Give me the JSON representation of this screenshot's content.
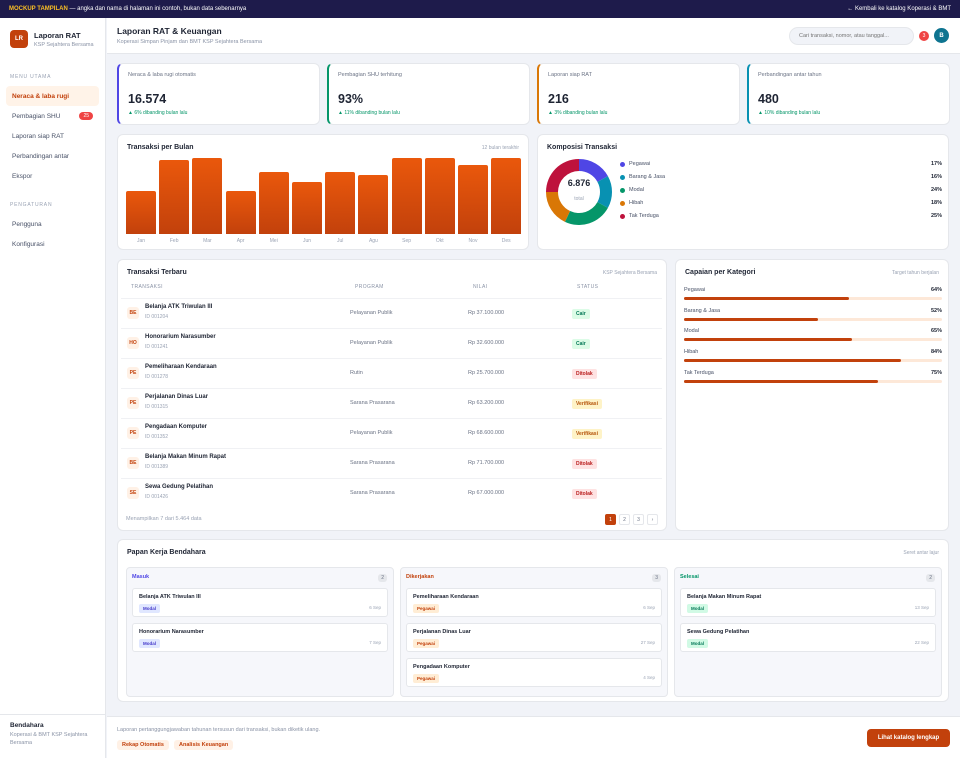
{
  "topbar": {
    "badge": "MOCKUP TAMPILAN",
    "message": " — angka dan nama di halaman ini contoh, bukan data sebenarnya",
    "back_link": "← Kembali ke katalog Koperasi & BMT"
  },
  "sidebar": {
    "logo": "LR",
    "app_title": "Laporan RAT",
    "app_subtitle": "KSP Sejahtera Bersama",
    "section_main": "MENU UTAMA",
    "items": [
      {
        "label": "Neraca & laba rugi",
        "badge": ""
      },
      {
        "label": "Pembagian SHU",
        "badge": "25"
      },
      {
        "label": "Laporan siap RAT",
        "badge": ""
      },
      {
        "label": "Perbandingan antar",
        "badge": ""
      },
      {
        "label": "Ekspor",
        "badge": ""
      }
    ],
    "section_settings": "PENGATURAN",
    "settings_items": [
      "Pengguna",
      "Konfigurasi"
    ],
    "footer_name": "Bendahara",
    "footer_org": "Koperasi & BMT KSP Sejahtera Bersama"
  },
  "header": {
    "title": "Laporan RAT & Keuangan",
    "subtitle": "Koperasi Simpan Pinjam dan BMT KSP Sejahtera Bersama",
    "search_placeholder": "Cari transaksi, nomor, atau tanggal...",
    "notif_count": "3",
    "avatar": "B"
  },
  "stats": [
    {
      "label": "Neraca & laba rugi otomatis",
      "value": "16.574",
      "delta": "▲ 6% dibanding bulan lalu",
      "accent": "#4f46e5"
    },
    {
      "label": "Pembagian SHU terhitung",
      "value": "93%",
      "delta": "▲ 11% dibanding bulan lalu",
      "accent": "#059669"
    },
    {
      "label": "Laporan siap RAT",
      "value": "216",
      "delta": "▲ 3% dibanding bulan lalu",
      "accent": "#d97706"
    },
    {
      "label": "Perbandingan antar tahun",
      "value": "480",
      "delta": "▲ 10% dibanding bulan lalu",
      "accent": "#0891b2"
    }
  ],
  "monthly": {
    "title": "Transaksi per Bulan",
    "note": "12 bulan terakhir",
    "chart_data": {
      "type": "bar",
      "title": "Transaksi per Bulan",
      "categories": [
        "Jan",
        "Feb",
        "Mar",
        "Apr",
        "Mei",
        "Jun",
        "Jul",
        "Agu",
        "Sep",
        "Okt",
        "Nov",
        "Des"
      ],
      "values": [
        57,
        98,
        100,
        56,
        82,
        69,
        82,
        78,
        100,
        100,
        91,
        100
      ],
      "ylim": [
        0,
        100
      ]
    }
  },
  "composition": {
    "title": "Komposisi Transaksi",
    "total": "6.876",
    "total_label": "total",
    "chart_data": {
      "type": "pie",
      "title": "Komposisi Transaksi",
      "categories": [
        "Pegawai",
        "Barang & Jasa",
        "Modal",
        "Hibah",
        "Tak Terduga"
      ],
      "values": [
        17,
        16,
        24,
        18,
        25
      ],
      "colors": [
        "#4f46e5",
        "#0891b2",
        "#059669",
        "#d97706",
        "#be123c"
      ]
    },
    "pct_labels": [
      "17%",
      "16%",
      "24%",
      "18%",
      "25%"
    ]
  },
  "transactions": {
    "title": "Transaksi Terbaru",
    "note": "KSP Sejahtera Bersama",
    "headers": [
      "TRANSAKSI",
      "PROGRAM",
      "NILAI",
      "STATUS"
    ],
    "rows": [
      {
        "icon": "BE",
        "name": "Belanja ATK Triwulan III",
        "id": "ID 001204",
        "program": "Pelayanan Publik",
        "value": "Rp 37.100.000",
        "status": "Cair",
        "kind": "cair"
      },
      {
        "icon": "HO",
        "name": "Honorarium Narasumber",
        "id": "ID 001241",
        "program": "Pelayanan Publik",
        "value": "Rp 32.600.000",
        "status": "Cair",
        "kind": "cair"
      },
      {
        "icon": "PE",
        "name": "Pemeliharaan Kendaraan",
        "id": "ID 001278",
        "program": "Rutin",
        "value": "Rp 25.700.000",
        "status": "Ditolak",
        "kind": "ditolak"
      },
      {
        "icon": "PE",
        "name": "Perjalanan Dinas Luar",
        "id": "ID 001315",
        "program": "Sarana Prasarana",
        "value": "Rp 63.200.000",
        "status": "Verifikasi",
        "kind": "verifikasi"
      },
      {
        "icon": "PE",
        "name": "Pengadaan Komputer",
        "id": "ID 001352",
        "program": "Pelayanan Publik",
        "value": "Rp 68.600.000",
        "status": "Verifikasi",
        "kind": "verifikasi"
      },
      {
        "icon": "BE",
        "name": "Belanja Makan Minum Rapat",
        "id": "ID 001389",
        "program": "Sarana Prasarana",
        "value": "Rp 71.700.000",
        "status": "Ditolak",
        "kind": "ditolak"
      },
      {
        "icon": "SE",
        "name": "Sewa Gedung Pelatihan",
        "id": "ID 001426",
        "program": "Sarana Prasarana",
        "value": "Rp 67.000.000",
        "status": "Ditolak",
        "kind": "ditolak"
      }
    ],
    "footer": "Menampilkan 7 dari 5.464 data",
    "pages": [
      "1",
      "2",
      "3",
      "›"
    ]
  },
  "achievement": {
    "title": "Capaian per Kategori",
    "note": "Target tahun berjalan",
    "items": [
      {
        "label": "Pegawai",
        "value": 64,
        "pct": "64%"
      },
      {
        "label": "Barang & Jasa",
        "value": 52,
        "pct": "52%"
      },
      {
        "label": "Modal",
        "value": 65,
        "pct": "65%"
      },
      {
        "label": "Hibah",
        "value": 84,
        "pct": "84%"
      },
      {
        "label": "Tak Terduga",
        "value": 75,
        "pct": "75%"
      }
    ]
  },
  "kanban": {
    "title": "Papan Kerja Bendahara",
    "note": "Seret antar lajur",
    "columns": [
      {
        "title": "Masuk",
        "count": "2",
        "color": "#4f46e5",
        "cards": [
          {
            "title": "Belanja ATK Triwulan III",
            "tag": "Modal",
            "date": "6 Sep"
          },
          {
            "title": "Honorarium Narasumber",
            "tag": "Modal",
            "date": "7 Sep"
          }
        ]
      },
      {
        "title": "Dikerjakan",
        "count": "3",
        "color": "#c2410c",
        "cards": [
          {
            "title": "Pemeliharaan Kendaraan",
            "tag": "Pegawai",
            "date": "6 Sep"
          },
          {
            "title": "Perjalanan Dinas Luar",
            "tag": "Pegawai",
            "date": "27 Sep"
          },
          {
            "title": "Pengadaan Komputer",
            "tag": "Pegawai",
            "date": "4 Sep"
          }
        ]
      },
      {
        "title": "Selesai",
        "count": "2",
        "color": "#059669",
        "cards": [
          {
            "title": "Belanja Makan Minum Rapat",
            "tag": "Modal",
            "date": "13 Sep"
          },
          {
            "title": "Sewa Gedung Pelatihan",
            "tag": "Modal",
            "date": "22 Sep"
          }
        ]
      }
    ]
  },
  "footer": {
    "note": "Laporan pertanggungjawaban tahunan tersusun dari transaksi, bukan diketik ulang.",
    "tags": [
      "Rekap Otomatis",
      "Analisis Keuangan"
    ],
    "button": "Lihat katalog lengkap"
  }
}
